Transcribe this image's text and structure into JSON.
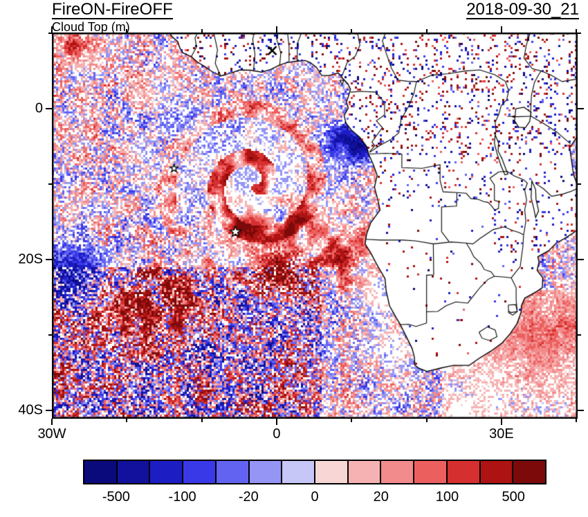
{
  "header": {
    "title": "FireON-FireOFF",
    "subtitle": "Cloud Top (m)",
    "date": "2018-09-30_21"
  },
  "chart_data": {
    "type": "heatmap",
    "title": "FireON-FireOFF",
    "subtitle": "Cloud Top (m)",
    "timestamp": "2018-09-30_21",
    "variable": "Cloud top height difference FireON minus FireOFF (m)",
    "region": "South-East Atlantic and southern Africa, lat-lon map with coastlines and country borders",
    "x_axis": {
      "labels": [
        {
          "value": -30,
          "text": "30W"
        },
        {
          "value": 0,
          "text": "0"
        },
        {
          "value": 30,
          "text": "30E"
        }
      ],
      "tick_values": [
        -30,
        -20,
        -10,
        0,
        10,
        20,
        30,
        40
      ],
      "range": [
        -30,
        40.2
      ]
    },
    "y_axis": {
      "labels": [
        {
          "value": 0,
          "text": "0"
        },
        {
          "value": -20,
          "text": "20S"
        },
        {
          "value": -40,
          "text": "40S"
        }
      ],
      "tick_values": [
        10,
        0,
        -10,
        -20,
        -30,
        -40
      ],
      "range": [
        -41.1,
        10.1
      ]
    },
    "colorbar": {
      "levels": [
        -500,
        -200,
        -100,
        -50,
        -20,
        -10,
        0,
        10,
        20,
        50,
        100,
        200,
        500
      ],
      "tick_labels": [
        "-500",
        "-100",
        "-20",
        "0",
        "20",
        "100",
        "500"
      ],
      "colors": [
        "#0a0a7d",
        "#11119e",
        "#1d1dc4",
        "#3939e8",
        "#6363f2",
        "#9595f6",
        "#c6c6f7",
        "#f8d6d6",
        "#f6b2b2",
        "#f28b8b",
        "#ec5f5f",
        "#d62f2f",
        "#ad1313",
        "#7d0a0a"
      ],
      "no_data_color": "#ffffff"
    },
    "markers": [
      {
        "type": "star",
        "lon": -5.5,
        "lat": -16.3,
        "size": 8
      },
      {
        "type": "star",
        "lon": -13.7,
        "lat": -7.9,
        "size": 6
      },
      {
        "type": "cross",
        "lon": -0.6,
        "lat": 7.7,
        "size": 6
      }
    ],
    "field_description": "Speckled positive (red) and negative (blue) cloud-top differences over the ocean; coherent pale-lavender stratocumulus deck with red filaments west of Angola/Namibia, dark maroon patch near 0E 21S, dense mixed red/blue band in the south-west, land interior mostly white with sparse speckles"
  }
}
